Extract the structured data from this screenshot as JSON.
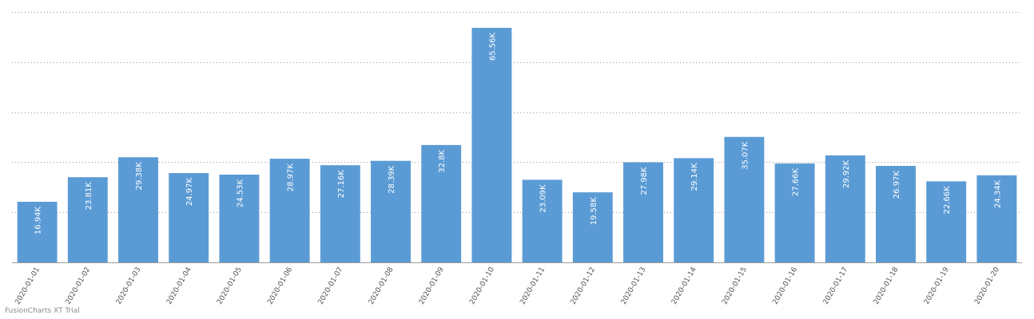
{
  "chart_data": {
    "type": "bar",
    "categories": [
      "2020-01-01",
      "2020-01-02",
      "2020-01-03",
      "2020-01-04",
      "2020-01-05",
      "2020-01-06",
      "2020-01-07",
      "2020-01-08",
      "2020-01-09",
      "2020-01-10",
      "2020-01-11",
      "2020-01-12",
      "2020-01-13",
      "2020-01-14",
      "2020-01-15",
      "2020-01-16",
      "2020-01-17",
      "2020-01-18",
      "2020-01-19",
      "2020-01-20"
    ],
    "values": [
      16940,
      23810,
      29380,
      24970,
      24530,
      28970,
      27160,
      28390,
      32800,
      65560,
      23090,
      19580,
      27980,
      29140,
      35070,
      27660,
      29920,
      26970,
      22660,
      24340
    ],
    "value_labels": [
      "16.94K",
      "23.81K",
      "29.38K",
      "24.97K",
      "24.53K",
      "28.97K",
      "27.16K",
      "28.39K",
      "32.8K",
      "65.56K",
      "23.09K",
      "19.58K",
      "27.98K",
      "29.14K",
      "35.07K",
      "27.66K",
      "29.92K",
      "26.97K",
      "22.66K",
      "24.34K"
    ],
    "title": "",
    "xlabel": "",
    "ylabel": "",
    "ylim": [
      0,
      70000
    ],
    "grid": true,
    "bar_color": "#5b9bd5",
    "grid_color": "#999999",
    "axis_color": "#999999",
    "label_color": "#ffffff",
    "tick_label_color": "#555555"
  },
  "watermark": "FusionCharts XT Trial"
}
